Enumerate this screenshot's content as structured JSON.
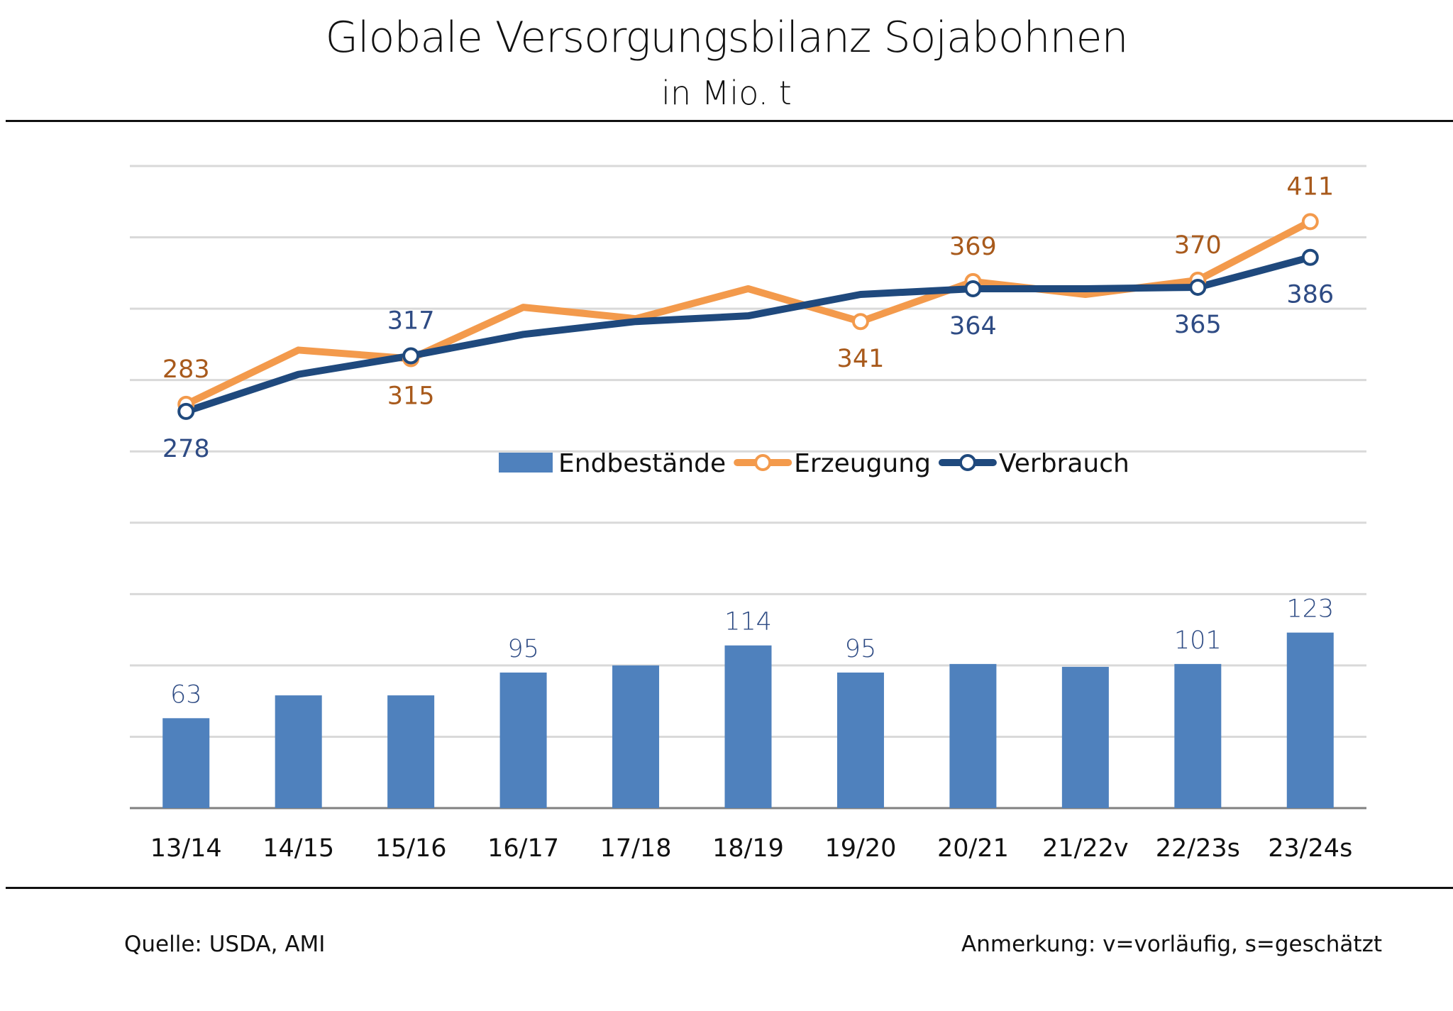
{
  "header": {
    "title": "Globale Versorgungsbilanz Sojabohnen",
    "subtitle": "in Mio. t"
  },
  "footer": {
    "source": "Quelle: USDA, AMI",
    "note": "Anmerkung: v=vorläufig, s=geschätzt"
  },
  "chart_data": {
    "type": "bar+line",
    "title": "Globale Versorgungsbilanz Sojabohnen",
    "subtitle": "in Mio. t",
    "xlabel": "",
    "ylabel": "",
    "ylim": [
      0,
      450
    ],
    "y_gridlines": [
      50,
      100,
      150,
      200,
      250,
      300,
      350,
      400,
      450
    ],
    "grid": true,
    "legend_position": "center",
    "categories": [
      "13/14",
      "14/15",
      "15/16",
      "16/17",
      "17/18",
      "18/19",
      "19/20",
      "20/21",
      "21/22v",
      "22/23s",
      "23/24s"
    ],
    "series": [
      {
        "name": "Endbestände",
        "type": "bar",
        "color": "#4f81bd",
        "label_color": "#2e4b84",
        "values": [
          63,
          79,
          79,
          95,
          100,
          114,
          95,
          101,
          99,
          101,
          123
        ],
        "labeled": [
          true,
          false,
          false,
          true,
          false,
          true,
          true,
          false,
          false,
          true,
          true
        ]
      },
      {
        "name": "Erzeugung",
        "type": "line",
        "color": "#f39a4c",
        "label_color": "#a85a1c",
        "values": [
          283,
          321,
          315,
          351,
          343,
          364,
          341,
          369,
          360,
          370,
          411
        ],
        "markers": [
          true,
          false,
          true,
          false,
          false,
          false,
          true,
          true,
          false,
          true,
          true
        ],
        "labeled": [
          true,
          false,
          true,
          false,
          false,
          false,
          true,
          true,
          false,
          true,
          true
        ],
        "label_pos": [
          "above",
          "",
          "below",
          "",
          "",
          "",
          "below",
          "above",
          "",
          "above",
          "above"
        ]
      },
      {
        "name": "Verbrauch",
        "type": "line",
        "color": "#1f497d",
        "label_color": "#2e4b84",
        "values": [
          278,
          304,
          317,
          332,
          341,
          345,
          360,
          364,
          364,
          365,
          386
        ],
        "markers": [
          true,
          false,
          true,
          false,
          false,
          false,
          false,
          true,
          false,
          true,
          true
        ],
        "labeled": [
          true,
          false,
          true,
          false,
          false,
          false,
          false,
          true,
          false,
          true,
          true
        ],
        "label_pos": [
          "below",
          "",
          "above",
          "",
          "",
          "",
          "",
          "below",
          "",
          "below",
          "below"
        ]
      }
    ]
  }
}
